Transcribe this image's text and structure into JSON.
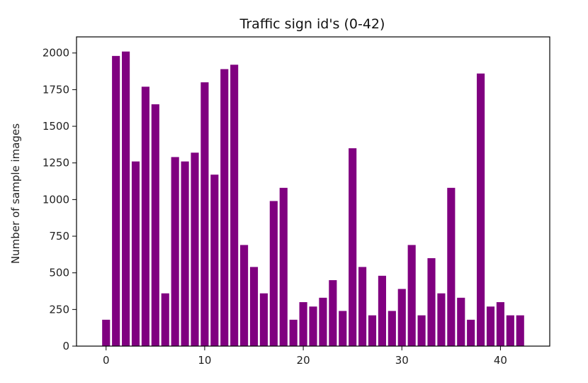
{
  "chart_data": {
    "type": "bar",
    "title": "Traffic sign id's (0-42)",
    "xlabel": "",
    "ylabel": "Number of sample images",
    "bar_color": "#800080",
    "grid": false,
    "legend": "none",
    "xlim": [
      -3,
      45
    ],
    "ylim": [
      0,
      2110
    ],
    "xticks": [
      0,
      10,
      20,
      30,
      40
    ],
    "yticks": [
      0,
      250,
      500,
      750,
      1000,
      1250,
      1500,
      1750,
      2000
    ],
    "categories": [
      0,
      1,
      2,
      3,
      4,
      5,
      6,
      7,
      8,
      9,
      10,
      11,
      12,
      13,
      14,
      15,
      16,
      17,
      18,
      19,
      20,
      21,
      22,
      23,
      24,
      25,
      26,
      27,
      28,
      29,
      30,
      31,
      32,
      33,
      34,
      35,
      36,
      37,
      38,
      39,
      40,
      41,
      42
    ],
    "values": [
      180,
      1980,
      2010,
      1260,
      1770,
      1650,
      360,
      1290,
      1260,
      1320,
      1800,
      1170,
      1890,
      1920,
      690,
      540,
      360,
      990,
      1080,
      180,
      300,
      270,
      330,
      450,
      240,
      1350,
      540,
      210,
      480,
      240,
      390,
      690,
      210,
      600,
      360,
      1080,
      330,
      180,
      1860,
      270,
      300,
      210,
      210
    ]
  }
}
